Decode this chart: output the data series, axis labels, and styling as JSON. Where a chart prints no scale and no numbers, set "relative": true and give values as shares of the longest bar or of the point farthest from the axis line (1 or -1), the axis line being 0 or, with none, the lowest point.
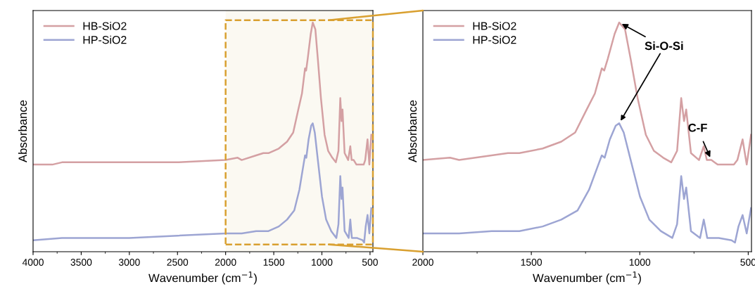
{
  "chart_data": [
    {
      "type": "line",
      "xlabel": "Wavenumber (cm$^{−1}$)",
      "ylabel": "Absorbance",
      "relative": true,
      "xlim": [
        4000,
        470
      ],
      "xticks": [
        4000,
        3500,
        3000,
        2500,
        2000,
        1500,
        1000,
        500
      ],
      "tick_labels": "x",
      "legend": "top left",
      "grid": false,
      "bands": [
        {
          "axis": "x",
          "from": 2000,
          "to": 470,
          "color": "#fbf9f2"
        }
      ],
      "series": [
        {
          "name": "HB-SiO2",
          "color": "#d4a0a3",
          "x": [
            4000,
            3800,
            3700,
            3500,
            3000,
            2500,
            2000,
            1875,
            1833,
            1683,
            1608,
            1555,
            1448,
            1362,
            1298,
            1245,
            1207,
            1175,
            1164,
            1148,
            1116,
            1095,
            1068,
            1042,
            1010,
            972,
            935,
            892,
            855,
            828,
            809,
            796,
            786,
            764,
            727,
            705,
            691,
            670,
            641,
            566,
            550,
            526,
            507,
            487
          ],
          "values": [
            0.38,
            0.38,
            0.39,
            0.39,
            0.39,
            0.39,
            0.4,
            0.41,
            0.4,
            0.42,
            0.43,
            0.43,
            0.45,
            0.48,
            0.52,
            0.62,
            0.69,
            0.8,
            0.79,
            0.84,
            0.95,
            1.0,
            0.97,
            0.84,
            0.67,
            0.51,
            0.44,
            0.41,
            0.39,
            0.44,
            0.67,
            0.57,
            0.62,
            0.43,
            0.4,
            0.46,
            0.4,
            0.4,
            0.38,
            0.38,
            0.4,
            0.49,
            0.38,
            0.51
          ]
        },
        {
          "name": "HP-SiO2",
          "color": "#9da5d3",
          "x": [
            4000,
            3700,
            3000,
            2500,
            2000,
            1875,
            1833,
            1683,
            1608,
            1555,
            1448,
            1362,
            1287,
            1234,
            1191,
            1175,
            1162,
            1138,
            1111,
            1095,
            1074,
            1042,
            999,
            956,
            903,
            850,
            828,
            809,
            796,
            786,
            764,
            722,
            705,
            689,
            636,
            577,
            561,
            545,
            526,
            507,
            487
          ],
          "values": [
            0.05,
            0.06,
            0.06,
            0.07,
            0.08,
            0.08,
            0.08,
            0.09,
            0.09,
            0.09,
            0.11,
            0.14,
            0.18,
            0.27,
            0.38,
            0.42,
            0.41,
            0.49,
            0.55,
            0.56,
            0.52,
            0.4,
            0.24,
            0.14,
            0.09,
            0.06,
            0.12,
            0.33,
            0.23,
            0.28,
            0.09,
            0.06,
            0.14,
            0.06,
            0.06,
            0.05,
            0.04,
            0.11,
            0.16,
            0.08,
            0.19
          ]
        }
      ]
    },
    {
      "type": "line",
      "xlabel": "Wavenumber (cm$^{−1}$)",
      "ylabel": "Absorbance",
      "relative": true,
      "xlim": [
        2000,
        485
      ],
      "xticks": [
        2000,
        1500,
        1000,
        500
      ],
      "tick_labels": "x",
      "legend": "top left",
      "grid": false,
      "annotations": [
        {
          "text": "Si-O-Si",
          "x": 1095,
          "y": 1.0
        },
        {
          "text": "C-F",
          "x": 670,
          "y": 0.4
        }
      ],
      "series": [
        {
          "name": "HB-SiO2",
          "color": "#d4a0a3",
          "x": [
            2000,
            1875,
            1833,
            1683,
            1608,
            1555,
            1448,
            1362,
            1298,
            1245,
            1207,
            1175,
            1164,
            1148,
            1116,
            1095,
            1068,
            1042,
            1010,
            972,
            935,
            892,
            855,
            828,
            809,
            796,
            786,
            764,
            727,
            705,
            691,
            670,
            641,
            566,
            550,
            526,
            507,
            487
          ],
          "values": [
            0.4,
            0.41,
            0.4,
            0.42,
            0.43,
            0.43,
            0.45,
            0.48,
            0.52,
            0.62,
            0.69,
            0.8,
            0.79,
            0.84,
            0.95,
            1.0,
            0.97,
            0.84,
            0.67,
            0.51,
            0.44,
            0.41,
            0.39,
            0.44,
            0.67,
            0.57,
            0.62,
            0.43,
            0.4,
            0.46,
            0.4,
            0.4,
            0.38,
            0.38,
            0.4,
            0.49,
            0.38,
            0.51
          ]
        },
        {
          "name": "HP-SiO2",
          "color": "#9da5d3",
          "x": [
            2000,
            1875,
            1833,
            1683,
            1608,
            1555,
            1448,
            1362,
            1287,
            1234,
            1191,
            1175,
            1162,
            1138,
            1111,
            1095,
            1074,
            1042,
            999,
            956,
            903,
            850,
            828,
            809,
            796,
            786,
            764,
            722,
            705,
            689,
            636,
            577,
            561,
            545,
            526,
            507,
            487
          ],
          "values": [
            0.08,
            0.08,
            0.08,
            0.09,
            0.09,
            0.09,
            0.11,
            0.14,
            0.18,
            0.27,
            0.38,
            0.42,
            0.41,
            0.49,
            0.55,
            0.56,
            0.52,
            0.4,
            0.24,
            0.14,
            0.09,
            0.06,
            0.12,
            0.33,
            0.23,
            0.28,
            0.09,
            0.06,
            0.14,
            0.06,
            0.06,
            0.05,
            0.04,
            0.11,
            0.16,
            0.08,
            0.19
          ]
        }
      ]
    }
  ]
}
